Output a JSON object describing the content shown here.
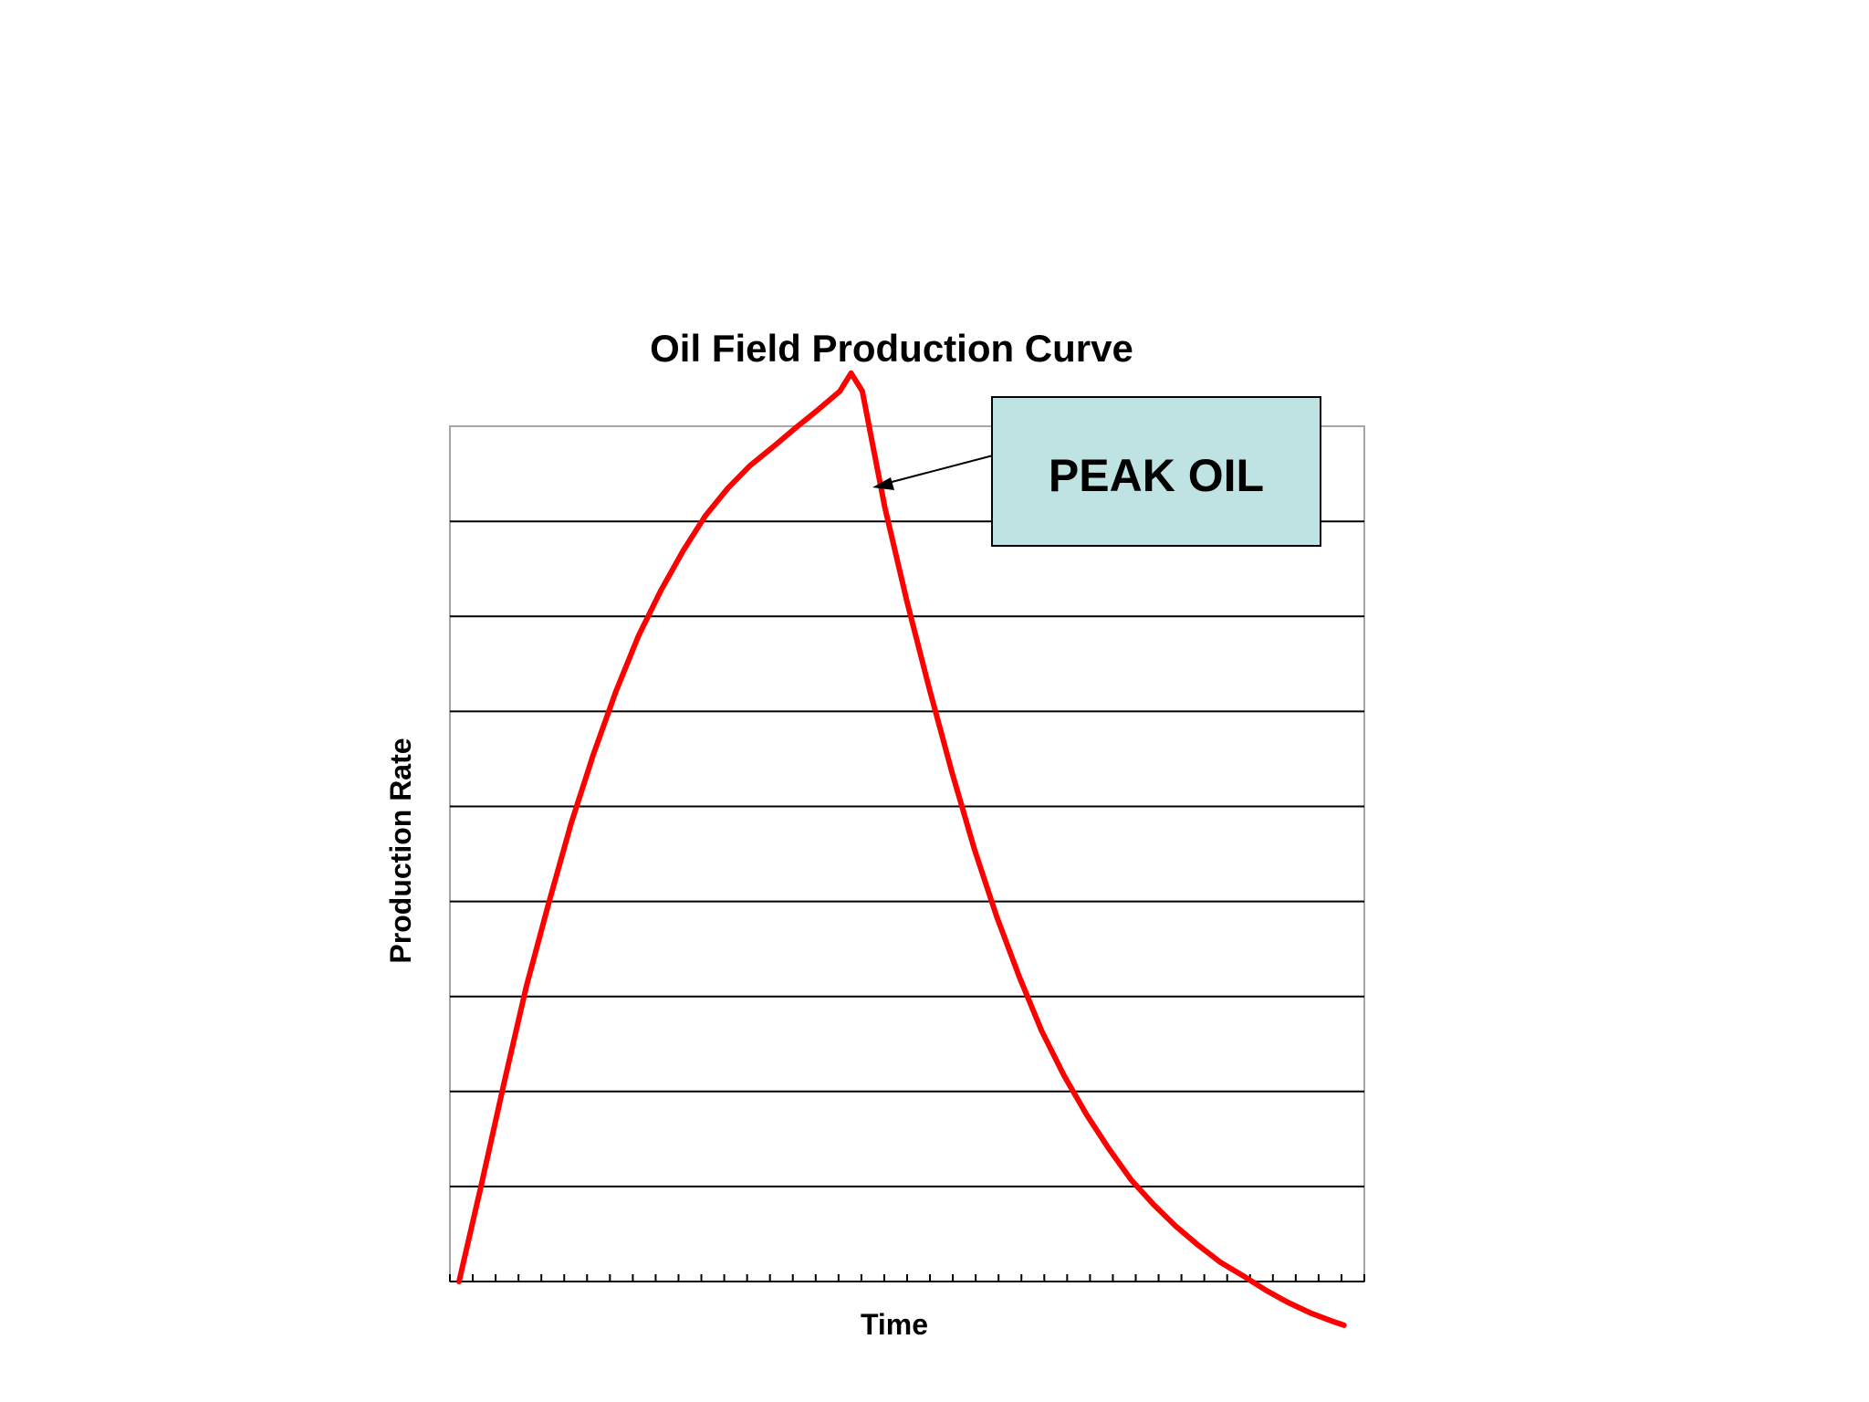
{
  "chart_data": {
    "type": "line",
    "title": "Oil Field Production Curve",
    "xlabel": "Time",
    "ylabel": "Production Rate",
    "xlim": [
      0,
      40
    ],
    "ylim": [
      0,
      9
    ],
    "x_tick_count": 40,
    "y_gridlines": [
      1,
      2,
      3,
      4,
      5,
      6,
      7,
      8
    ],
    "grid": "horizontal",
    "series": [
      {
        "color": "#ff0000",
        "x": [
          0,
          1,
          2,
          3,
          4,
          5,
          6,
          7,
          8,
          9,
          10,
          11,
          12,
          13,
          14,
          15,
          16,
          17,
          17.5,
          18,
          19,
          20,
          21,
          22,
          23,
          24,
          25,
          26,
          27,
          28,
          29,
          30,
          31,
          32,
          33,
          34,
          35,
          36,
          37,
          38,
          39,
          39.5
        ],
        "values": [
          0,
          1.02,
          2.08,
          3.1,
          3.98,
          4.82,
          5.55,
          6.21,
          6.79,
          7.27,
          7.69,
          8.06,
          8.35,
          8.59,
          8.78,
          8.98,
          9.17,
          9.37,
          9.56,
          9.37,
          8.15,
          7.15,
          6.23,
          5.36,
          4.55,
          3.84,
          3.21,
          2.64,
          2.17,
          1.76,
          1.4,
          1.07,
          0.81,
          0.58,
          0.38,
          0.2,
          0.06,
          -0.09,
          -0.22,
          -0.33,
          -0.42,
          -0.46
        ]
      }
    ],
    "annotation": {
      "text": "PEAK OIL",
      "fill": "#bfe2e3",
      "points_to_x": 17.5
    }
  }
}
